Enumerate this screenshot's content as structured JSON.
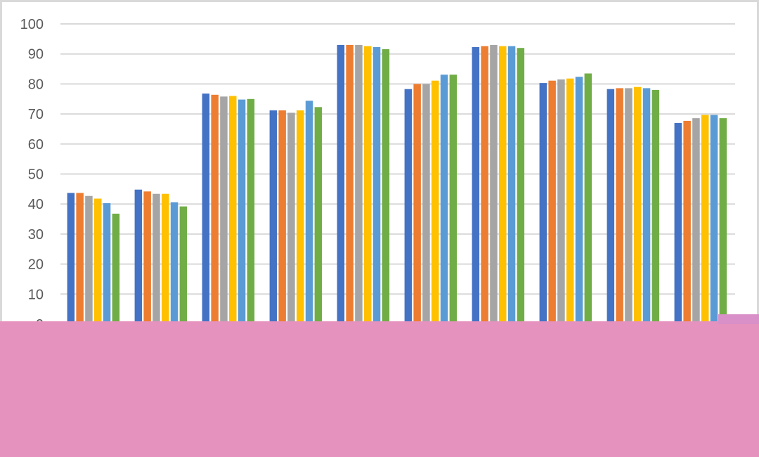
{
  "chart_data": {
    "type": "bar",
    "title": "",
    "xlabel": "",
    "ylabel": "",
    "ylim": [
      0,
      100
    ],
    "yticks": [
      0,
      10,
      20,
      30,
      40,
      50,
      60,
      70,
      80,
      90,
      100
    ],
    "grid": true,
    "legend": "not visible",
    "category_count": 10,
    "series_colors": [
      "#4472C4",
      "#ED7D31",
      "#A5A5A5",
      "#FFC000",
      "#5B9BD5",
      "#70AD47"
    ],
    "series": [
      {
        "values": [
          43.7,
          44.8,
          76.8,
          71.2,
          93.0,
          78.3,
          92.3,
          80.3,
          78.3,
          67.0
        ]
      },
      {
        "values": [
          43.7,
          44.2,
          76.4,
          71.2,
          93.0,
          80.0,
          92.6,
          81.1,
          78.6,
          67.7
        ]
      },
      {
        "values": [
          42.7,
          43.4,
          75.8,
          70.4,
          93.0,
          80.0,
          93.0,
          81.5,
          78.6,
          68.6
        ]
      },
      {
        "values": [
          41.8,
          43.4,
          76.0,
          71.2,
          92.6,
          81.1,
          92.6,
          81.8,
          79.0,
          69.7
        ]
      },
      {
        "values": [
          40.3,
          40.6,
          74.8,
          74.4,
          92.3,
          83.1,
          92.6,
          82.4,
          78.6,
          69.7
        ]
      },
      {
        "values": [
          36.8,
          39.2,
          75.0,
          72.3,
          91.6,
          83.1,
          92.0,
          83.5,
          78.0,
          68.6
        ]
      }
    ]
  },
  "overlay": {
    "color": "#E692BE",
    "tab_color": "#D98FC7"
  }
}
